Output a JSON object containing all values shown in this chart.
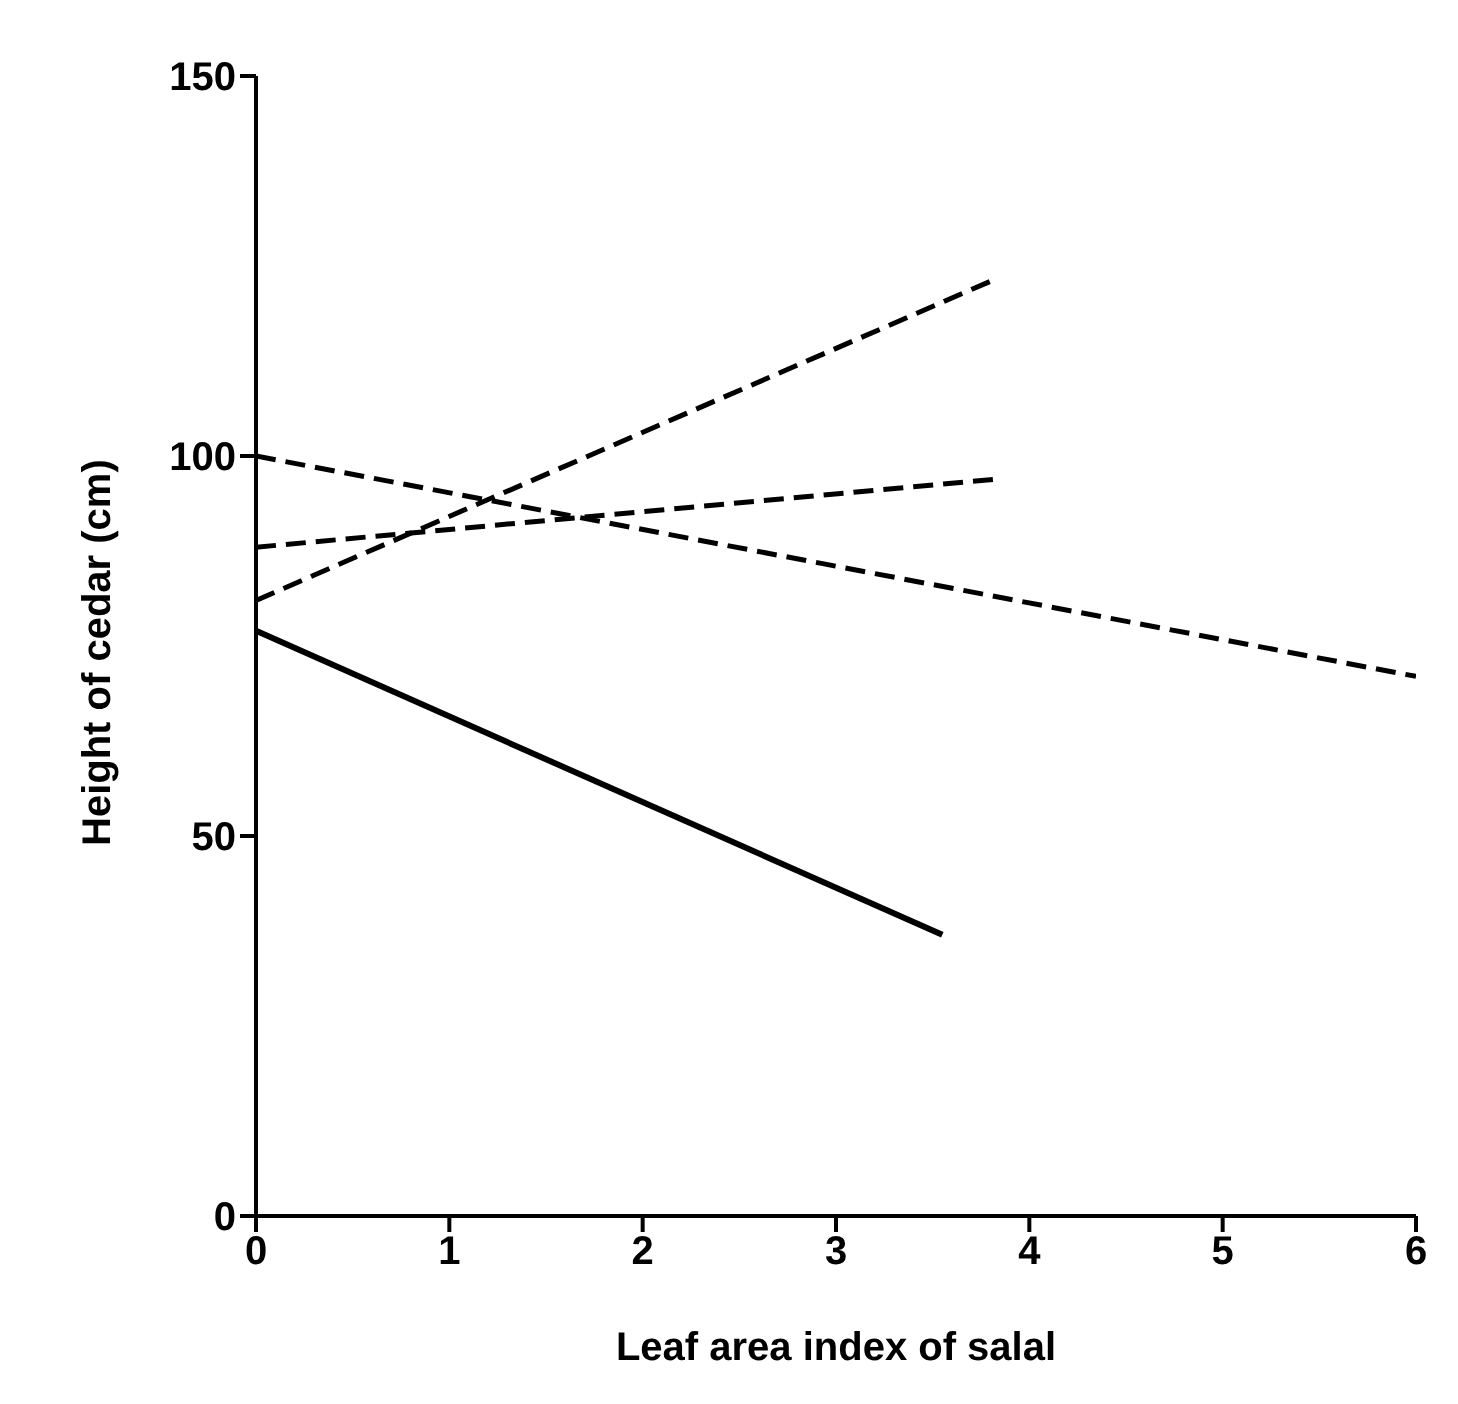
{
  "chart_data": {
    "type": "line",
    "xlabel": "Leaf area index of salal",
    "ylabel": "Height of cedar (cm)",
    "xlim": [
      0,
      6
    ],
    "xticks": [
      0,
      1,
      2,
      3,
      4,
      5,
      6
    ],
    "ylim": [
      0,
      150
    ],
    "yticks": [
      0,
      50,
      100,
      150
    ],
    "grid": false,
    "legend": false,
    "marker": "none",
    "series": [
      {
        "color": "#000000",
        "line_style": "solid",
        "x": [
          0,
          3.55
        ],
        "values": [
          77,
          37
        ]
      },
      {
        "color": "#000000",
        "line_style": "dashed",
        "x": [
          0,
          6
        ],
        "values": [
          100,
          71
        ]
      },
      {
        "color": "#000000",
        "line_style": "dashed",
        "x": [
          0,
          3.8
        ],
        "values": [
          81,
          123
        ]
      },
      {
        "color": "#000000",
        "line_style": "dashed",
        "x": [
          0,
          3.85
        ],
        "values": [
          88,
          97
        ]
      }
    ]
  }
}
